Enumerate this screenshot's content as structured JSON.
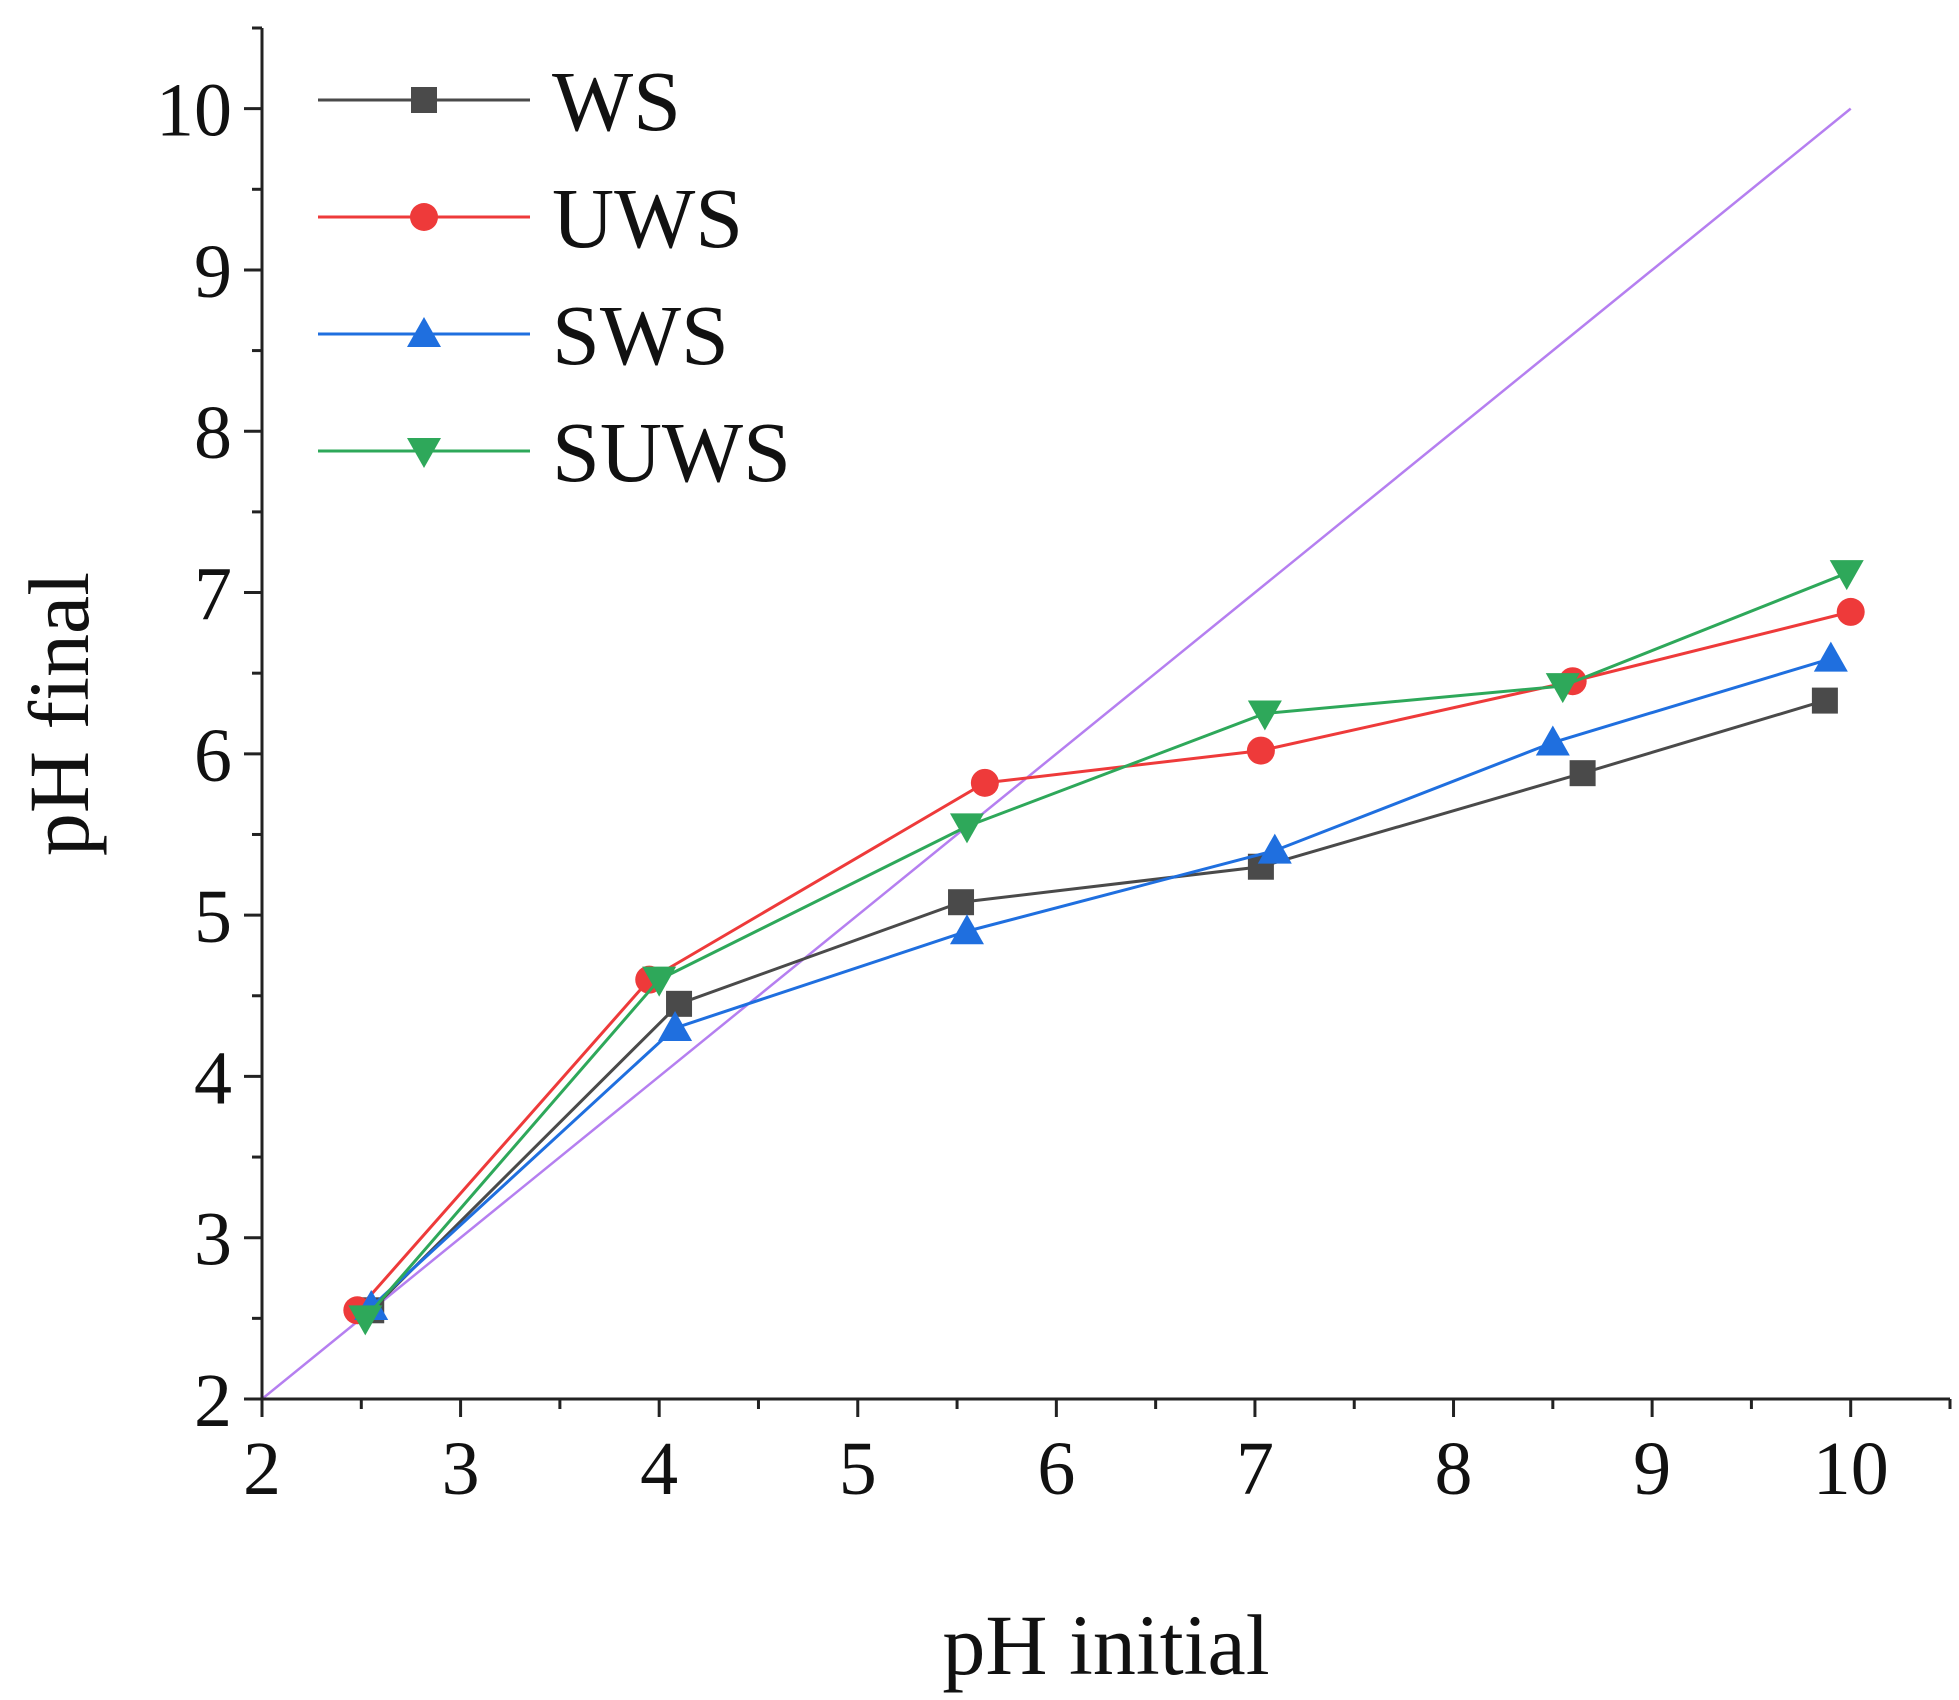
{
  "chart_data": {
    "type": "line",
    "title": "",
    "xlabel": "pH initial",
    "ylabel": "pH final",
    "xlim": [
      2,
      10.5
    ],
    "ylim": [
      2,
      10.5
    ],
    "xticks": [
      2,
      3,
      4,
      5,
      6,
      7,
      8,
      9,
      10
    ],
    "yticks": [
      2,
      3,
      4,
      5,
      6,
      7,
      8,
      9,
      10
    ],
    "x_tick_labels": [
      "2",
      "3",
      "4",
      "5",
      "6",
      "7",
      "8",
      "9",
      "10"
    ],
    "y_tick_labels": [
      "2",
      "3",
      "4",
      "5",
      "6",
      "7",
      "8",
      "9",
      "10"
    ],
    "grid": false,
    "legend_position": "top-left",
    "series": [
      {
        "name": "WS",
        "color": "#4a4a4a",
        "marker": "square",
        "points": [
          [
            2.55,
            2.55
          ],
          [
            4.1,
            4.45
          ],
          [
            5.52,
            5.08
          ],
          [
            7.03,
            5.3
          ],
          [
            8.65,
            5.88
          ],
          [
            9.87,
            6.33
          ]
        ]
      },
      {
        "name": "UWS",
        "color": "#ee3a3a",
        "marker": "circle",
        "points": [
          [
            2.48,
            2.55
          ],
          [
            3.95,
            4.6
          ],
          [
            5.64,
            5.82
          ],
          [
            7.03,
            6.02
          ],
          [
            8.6,
            6.45
          ],
          [
            10.0,
            6.88
          ]
        ]
      },
      {
        "name": "SWS",
        "color": "#1f6fdf",
        "marker": "triangle-up",
        "points": [
          [
            2.55,
            2.57
          ],
          [
            4.08,
            4.3
          ],
          [
            5.55,
            4.9
          ],
          [
            7.1,
            5.4
          ],
          [
            8.5,
            6.07
          ],
          [
            9.9,
            6.59
          ]
        ]
      },
      {
        "name": "SUWS",
        "color": "#2ea85a",
        "marker": "triangle-down",
        "points": [
          [
            2.52,
            2.5
          ],
          [
            4.0,
            4.6
          ],
          [
            5.55,
            5.55
          ],
          [
            7.05,
            6.25
          ],
          [
            8.55,
            6.42
          ],
          [
            9.98,
            7.12
          ]
        ]
      }
    ],
    "reference_line": {
      "name": "y = x",
      "color": "#b57ff0",
      "points": [
        [
          2,
          2
        ],
        [
          10,
          10
        ]
      ]
    }
  }
}
